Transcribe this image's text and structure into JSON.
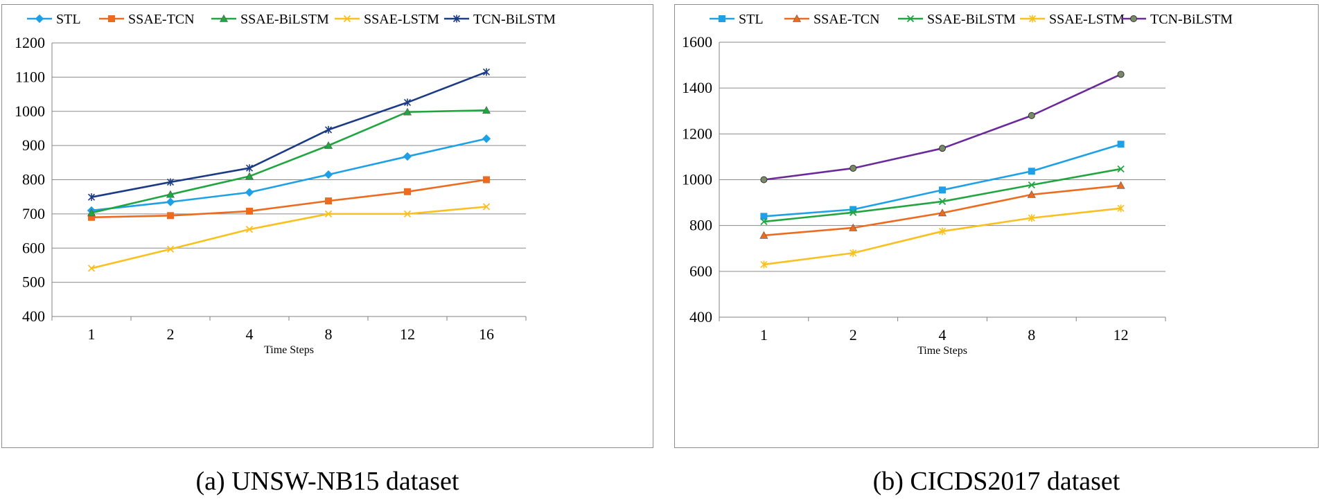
{
  "charts": [
    {
      "caption": "(a) UNSW-NB15 dataset",
      "chart_data": {
        "type": "line",
        "title": "",
        "xlabel": "Time Steps",
        "ylabel": "",
        "categories": [
          "1",
          "2",
          "4",
          "8",
          "12",
          "16"
        ],
        "ylim": [
          400,
          1200
        ],
        "yticks": [
          400,
          500,
          600,
          700,
          800,
          900,
          1000,
          1100,
          1200
        ],
        "grid": "horizontal",
        "legend": "top",
        "series": [
          {
            "name": "STL",
            "color": "#1ea0e6",
            "marker": "diamond",
            "values": [
              710,
              735,
              763,
              815,
              868,
              920
            ]
          },
          {
            "name": "SSAE-TCN",
            "color": "#ec6b1f",
            "marker": "square",
            "values": [
              690,
              695,
              708,
              738,
              765,
              800
            ]
          },
          {
            "name": "SSAE-BiLSTM",
            "color": "#21a540",
            "marker": "triangle",
            "values": [
              703,
              757,
              810,
              900,
              998,
              1003
            ]
          },
          {
            "name": "SSAE-LSTM",
            "color": "#fbbf1e",
            "marker": "x",
            "values": [
              541,
              597,
              655,
              700,
              700,
              721
            ]
          },
          {
            "name": "TCN-BiLSTM",
            "color": "#1c3b86",
            "marker": "asterisk",
            "values": [
              749,
              793,
              834,
              946,
              1026,
              1115
            ]
          }
        ]
      }
    },
    {
      "caption": "(b) CICDS2017 dataset",
      "chart_data": {
        "type": "line",
        "title": "",
        "xlabel": "Time Steps",
        "ylabel": "",
        "categories": [
          "1",
          "2",
          "4",
          "8",
          "12"
        ],
        "ylim": [
          400,
          1600
        ],
        "yticks": [
          400,
          600,
          800,
          1000,
          1200,
          1400,
          1600
        ],
        "grid": "horizontal",
        "legend": "top",
        "series": [
          {
            "name": "STL",
            "color": "#1ea0e6",
            "marker": "square",
            "values": [
              840,
              870,
              955,
              1037,
              1155
            ]
          },
          {
            "name": "SSAE-TCN",
            "color": "#ec6b1f",
            "marker": "triangle",
            "values": [
              757,
              790,
              855,
              935,
              975
            ]
          },
          {
            "name": "SSAE-BiLSTM",
            "color": "#21a540",
            "marker": "x",
            "values": [
              817,
              857,
              905,
              977,
              1047
            ]
          },
          {
            "name": "SSAE-LSTM",
            "color": "#fbbf1e",
            "marker": "asterisk",
            "values": [
              630,
              680,
              775,
              833,
              875
            ]
          },
          {
            "name": "TCN-BiLSTM",
            "color": "#6a2a9a",
            "marker": "circle",
            "values": [
              1000,
              1050,
              1137,
              1280,
              1460
            ]
          }
        ]
      }
    }
  ]
}
